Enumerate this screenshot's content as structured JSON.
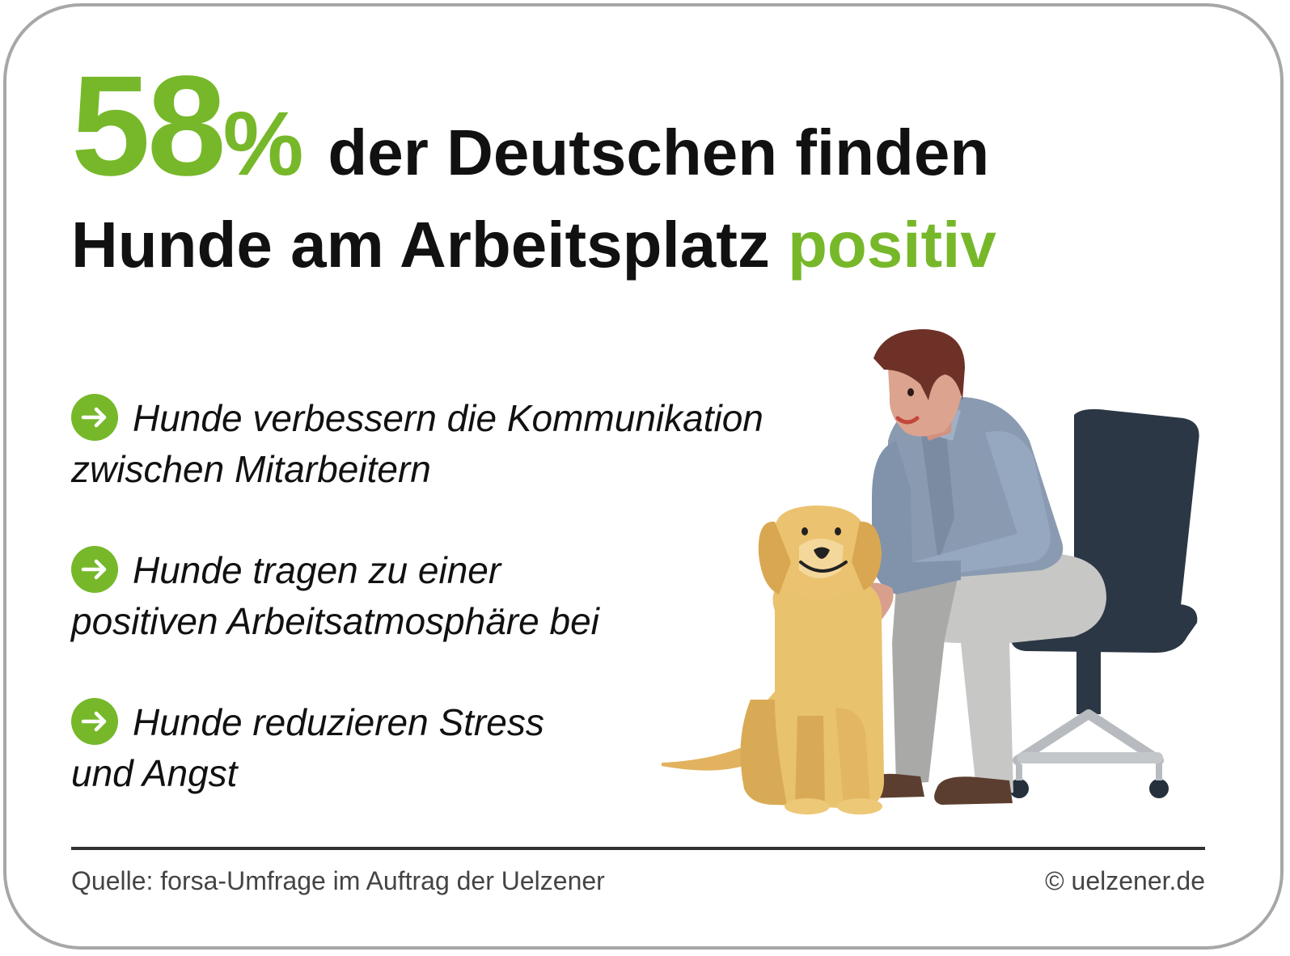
{
  "headline": {
    "number": "58",
    "percent_sign": "%",
    "line1_rest": "der Deutschen finden",
    "line2_text": "Hunde am Arbeitsplatz",
    "line2_highlight": "positiv"
  },
  "bullets": [
    {
      "line1": "Hunde verbessern die Kommunikation",
      "line2": "zwischen Mitarbeitern"
    },
    {
      "line1": "Hunde tragen zu einer",
      "line2": "positiven Arbeitsatmosphäre bei"
    },
    {
      "line1": "Hunde reduzieren Stress",
      "line2": "und Angst"
    }
  ],
  "footer": {
    "source": "Quelle: forsa-Umfrage im Auftrag der Uelzener",
    "copyright": "© uelzener.de"
  },
  "colors": {
    "accent_green": "#76b82a",
    "text": "#111111",
    "border": "#a7a7a7"
  },
  "icons": [
    "arrow-right-icon"
  ],
  "illustration": "man-on-office-chair-petting-dog"
}
